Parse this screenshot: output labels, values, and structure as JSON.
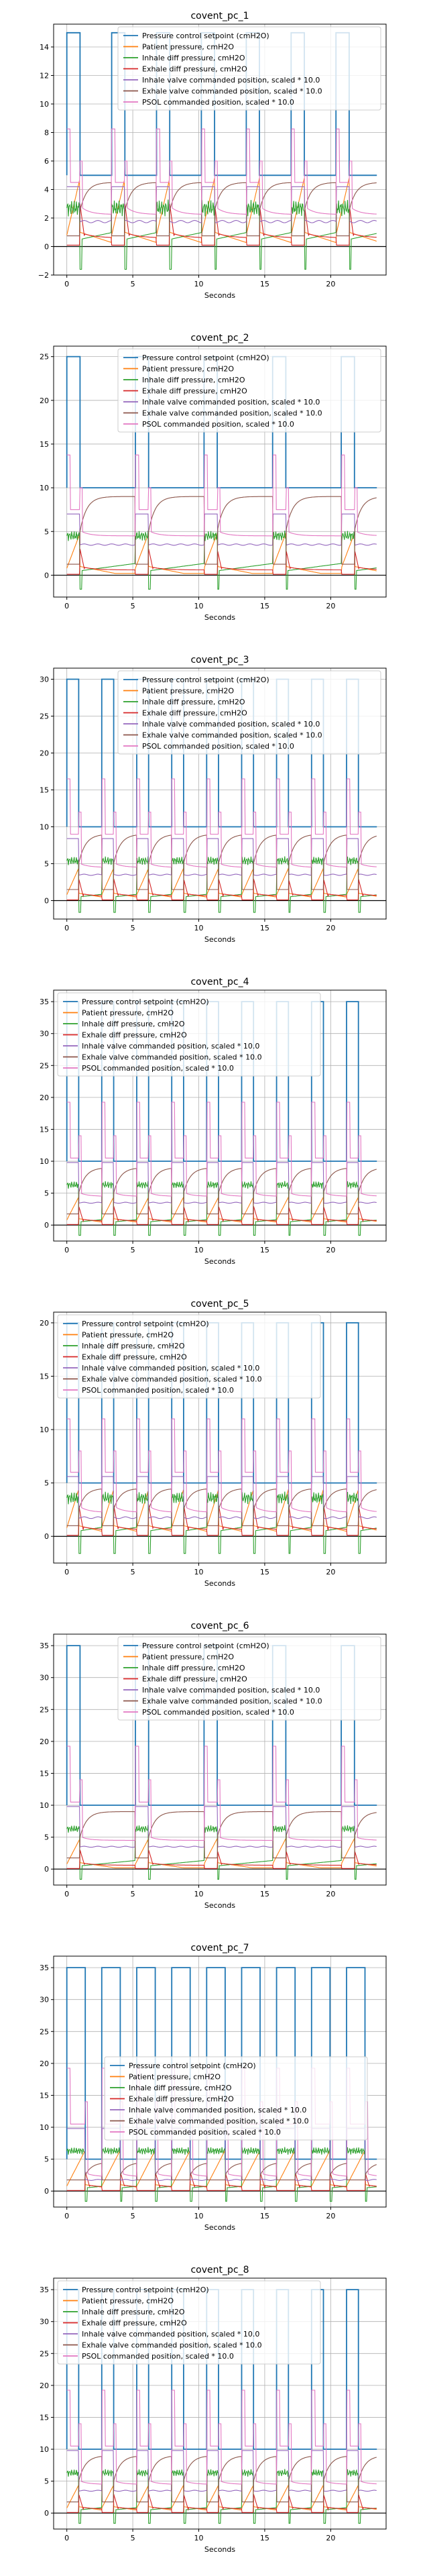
{
  "chart_data": [
    {
      "type": "line",
      "title": "covent_pc_1",
      "xlabel": "Seconds",
      "ylabel": "",
      "xlim": [
        -1,
        24.2
      ],
      "ylim": [
        -2,
        15.6
      ],
      "xticks": [
        0,
        5,
        10,
        15,
        20
      ],
      "yticks": [
        -2,
        0,
        2,
        4,
        6,
        8,
        10,
        12,
        14
      ],
      "grid": true,
      "legend": "top-center",
      "setpoint": {
        "low": 5,
        "high": 15,
        "period": 3.4,
        "high_duration": 1.0,
        "offset": 0.0
      },
      "series": [
        {
          "name": "Pressure control setpoint (cmH2O)",
          "color": "#1f77b4"
        },
        {
          "name": "Patient pressure, cmH2O",
          "color": "#ff7f0e"
        },
        {
          "name": "Inhale diff pressure, cmH2O",
          "color": "#2ca02c"
        },
        {
          "name": "Exhale diff pressure, cmH2O",
          "color": "#d62728"
        },
        {
          "name": "Inhale valve commanded position, scaled * 10.0",
          "color": "#9467bd"
        },
        {
          "name": "Exhale valve commanded position, scaled * 10.0",
          "color": "#8c564b"
        },
        {
          "name": "PSOL commanded position, scaled * 10.0",
          "color": "#e377c2"
        }
      ]
    },
    {
      "type": "line",
      "title": "covent_pc_2",
      "xlabel": "Seconds",
      "ylabel": "",
      "xlim": [
        -1,
        24.2
      ],
      "ylim": [
        -2.5,
        26.2
      ],
      "xticks": [
        0,
        5,
        10,
        15,
        20
      ],
      "yticks": [
        0,
        5,
        10,
        15,
        20,
        25
      ],
      "grid": true,
      "legend": "top-center",
      "setpoint": {
        "low": 10,
        "high": 25,
        "period": 5.2,
        "high_duration": 1.0,
        "offset": 0.0
      },
      "series": [
        {
          "name": "Pressure control setpoint (cmH2O)",
          "color": "#1f77b4"
        },
        {
          "name": "Patient pressure, cmH2O",
          "color": "#ff7f0e"
        },
        {
          "name": "Inhale diff pressure, cmH2O",
          "color": "#2ca02c"
        },
        {
          "name": "Exhale diff pressure, cmH2O",
          "color": "#d62728"
        },
        {
          "name": "Inhale valve commanded position, scaled * 10.0",
          "color": "#9467bd"
        },
        {
          "name": "Exhale valve commanded position, scaled * 10.0",
          "color": "#8c564b"
        },
        {
          "name": "PSOL commanded position, scaled * 10.0",
          "color": "#e377c2"
        }
      ]
    },
    {
      "type": "line",
      "title": "covent_pc_3",
      "xlabel": "Seconds",
      "ylabel": "",
      "xlim": [
        -1,
        24.2
      ],
      "ylim": [
        -2.5,
        31.5
      ],
      "xticks": [
        0,
        5,
        10,
        15,
        20
      ],
      "yticks": [
        0,
        5,
        10,
        15,
        20,
        25,
        30
      ],
      "grid": true,
      "legend": "top-center",
      "setpoint": {
        "low": 10,
        "high": 30,
        "period": 2.65,
        "high_duration": 0.9,
        "offset": 0.0
      },
      "series": [
        {
          "name": "Pressure control setpoint (cmH2O)",
          "color": "#1f77b4"
        },
        {
          "name": "Patient pressure, cmH2O",
          "color": "#ff7f0e"
        },
        {
          "name": "Inhale diff pressure, cmH2O",
          "color": "#2ca02c"
        },
        {
          "name": "Exhale diff pressure, cmH2O",
          "color": "#d62728"
        },
        {
          "name": "Inhale valve commanded position, scaled * 10.0",
          "color": "#9467bd"
        },
        {
          "name": "Exhale valve commanded position, scaled * 10.0",
          "color": "#8c564b"
        },
        {
          "name": "PSOL commanded position, scaled * 10.0",
          "color": "#e377c2"
        }
      ]
    },
    {
      "type": "line",
      "title": "covent_pc_4",
      "xlabel": "Seconds",
      "ylabel": "",
      "xlim": [
        -1,
        24.2
      ],
      "ylim": [
        -2.5,
        36.8
      ],
      "xticks": [
        0,
        5,
        10,
        15,
        20
      ],
      "yticks": [
        0,
        5,
        10,
        15,
        20,
        25,
        30,
        35
      ],
      "grid": true,
      "legend": "top-left",
      "setpoint": {
        "low": 10,
        "high": 35,
        "period": 2.65,
        "high_duration": 0.9,
        "offset": 0.0
      },
      "series": [
        {
          "name": "Pressure control setpoint (cmH2O)",
          "color": "#1f77b4"
        },
        {
          "name": "Patient pressure, cmH2O",
          "color": "#ff7f0e"
        },
        {
          "name": "Inhale diff pressure, cmH2O",
          "color": "#2ca02c"
        },
        {
          "name": "Exhale diff pressure, cmH2O",
          "color": "#d62728"
        },
        {
          "name": "Inhale valve commanded position, scaled * 10.0",
          "color": "#9467bd"
        },
        {
          "name": "Exhale valve commanded position, scaled * 10.0",
          "color": "#8c564b"
        },
        {
          "name": "PSOL commanded position, scaled * 10.0",
          "color": "#e377c2"
        }
      ]
    },
    {
      "type": "line",
      "title": "covent_pc_5",
      "xlabel": "Seconds",
      "ylabel": "",
      "xlim": [
        -1,
        24.2
      ],
      "ylim": [
        -2.5,
        21.0
      ],
      "xticks": [
        0,
        5,
        10,
        15,
        20
      ],
      "yticks": [
        0,
        5,
        10,
        15,
        20
      ],
      "grid": true,
      "legend": "top-left",
      "setpoint": {
        "low": 5,
        "high": 20,
        "period": 2.65,
        "high_duration": 0.9,
        "offset": 0.0
      },
      "series": [
        {
          "name": "Pressure control setpoint (cmH2O)",
          "color": "#1f77b4"
        },
        {
          "name": "Patient pressure, cmH2O",
          "color": "#ff7f0e"
        },
        {
          "name": "Inhale diff pressure, cmH2O",
          "color": "#2ca02c"
        },
        {
          "name": "Exhale diff pressure, cmH2O",
          "color": "#d62728"
        },
        {
          "name": "Inhale valve commanded position, scaled * 10.0",
          "color": "#9467bd"
        },
        {
          "name": "Exhale valve commanded position, scaled * 10.0",
          "color": "#8c564b"
        },
        {
          "name": "PSOL commanded position, scaled * 10.0",
          "color": "#e377c2"
        }
      ]
    },
    {
      "type": "line",
      "title": "covent_pc_6",
      "xlabel": "Seconds",
      "ylabel": "",
      "xlim": [
        -1,
        24.2
      ],
      "ylim": [
        -2.5,
        36.8
      ],
      "xticks": [
        0,
        5,
        10,
        15,
        20
      ],
      "yticks": [
        0,
        5,
        10,
        15,
        20,
        25,
        30,
        35
      ],
      "grid": true,
      "legend": "top-center",
      "setpoint": {
        "low": 10,
        "high": 35,
        "period": 5.2,
        "high_duration": 1.0,
        "offset": 0.0
      },
      "series": [
        {
          "name": "Pressure control setpoint (cmH2O)",
          "color": "#1f77b4"
        },
        {
          "name": "Patient pressure, cmH2O",
          "color": "#ff7f0e"
        },
        {
          "name": "Inhale diff pressure, cmH2O",
          "color": "#2ca02c"
        },
        {
          "name": "Exhale diff pressure, cmH2O",
          "color": "#d62728"
        },
        {
          "name": "Inhale valve commanded position, scaled * 10.0",
          "color": "#9467bd"
        },
        {
          "name": "Exhale valve commanded position, scaled * 10.0",
          "color": "#8c564b"
        },
        {
          "name": "PSOL commanded position, scaled * 10.0",
          "color": "#e377c2"
        }
      ]
    },
    {
      "type": "line",
      "title": "covent_pc_7",
      "xlabel": "Seconds",
      "ylabel": "",
      "xlim": [
        -1,
        24.2
      ],
      "ylim": [
        -2.5,
        36.8
      ],
      "xticks": [
        0,
        5,
        10,
        15,
        20
      ],
      "yticks": [
        0,
        5,
        10,
        15,
        20,
        25,
        30,
        35
      ],
      "grid": true,
      "legend": "center",
      "setpoint": {
        "low": 5,
        "high": 35,
        "period": 2.65,
        "high_duration": 1.4,
        "offset": 0.0
      },
      "series": [
        {
          "name": "Pressure control setpoint (cmH2O)",
          "color": "#1f77b4"
        },
        {
          "name": "Patient pressure, cmH2O",
          "color": "#ff7f0e"
        },
        {
          "name": "Inhale diff pressure, cmH2O",
          "color": "#2ca02c"
        },
        {
          "name": "Exhale diff pressure, cmH2O",
          "color": "#d62728"
        },
        {
          "name": "Inhale valve commanded position, scaled * 10.0",
          "color": "#9467bd"
        },
        {
          "name": "Exhale valve commanded position, scaled * 10.0",
          "color": "#8c564b"
        },
        {
          "name": "PSOL commanded position, scaled * 10.0",
          "color": "#e377c2"
        }
      ]
    },
    {
      "type": "line",
      "title": "covent_pc_8",
      "xlabel": "Seconds",
      "ylabel": "",
      "xlim": [
        -1,
        24.2
      ],
      "ylim": [
        -2.5,
        36.8
      ],
      "xticks": [
        0,
        5,
        10,
        15,
        20
      ],
      "yticks": [
        0,
        5,
        10,
        15,
        20,
        25,
        30,
        35
      ],
      "grid": true,
      "legend": "top-left",
      "setpoint": {
        "low": 10,
        "high": 35,
        "period": 2.65,
        "high_duration": 0.9,
        "offset": 0.0
      },
      "series": [
        {
          "name": "Pressure control setpoint (cmH2O)",
          "color": "#1f77b4"
        },
        {
          "name": "Patient pressure, cmH2O",
          "color": "#ff7f0e"
        },
        {
          "name": "Inhale diff pressure, cmH2O",
          "color": "#2ca02c"
        },
        {
          "name": "Exhale diff pressure, cmH2O",
          "color": "#d62728"
        },
        {
          "name": "Inhale valve commanded position, scaled * 10.0",
          "color": "#9467bd"
        },
        {
          "name": "Exhale valve commanded position, scaled * 10.0",
          "color": "#8c564b"
        },
        {
          "name": "PSOL commanded position, scaled * 10.0",
          "color": "#e377c2"
        }
      ]
    }
  ]
}
